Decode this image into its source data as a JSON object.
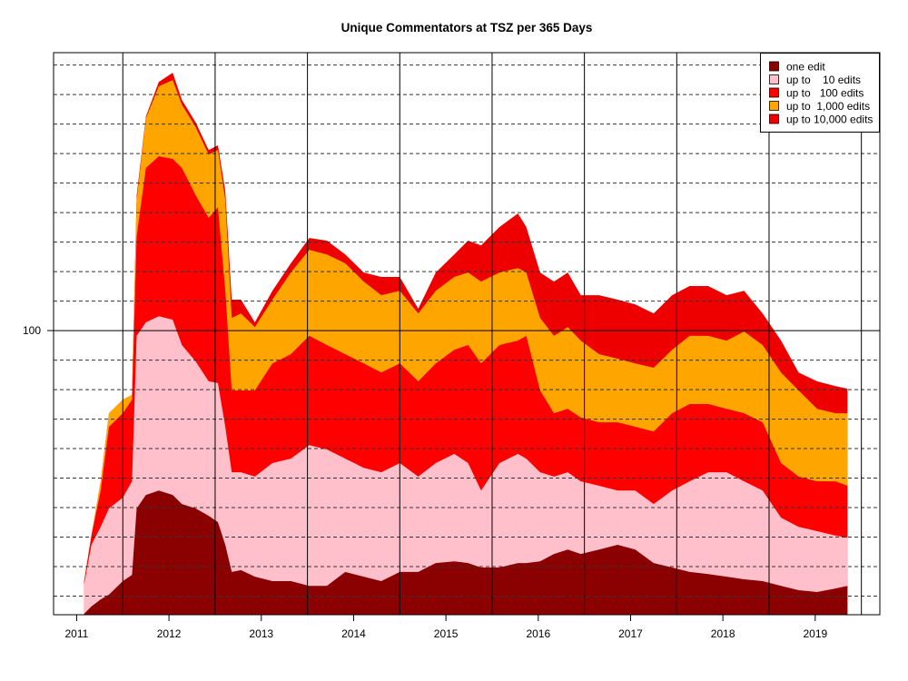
{
  "chart_data": {
    "type": "area",
    "stacked": true,
    "values_are_cumulative": true,
    "title": "Unique Commentators at TSZ per 365 Days",
    "xlabel": "",
    "ylabel": "",
    "xlim": [
      2010.75,
      2019.7
    ],
    "ylim": [
      3.7,
      194.2
    ],
    "x_ticks": [
      2011,
      2012,
      2013,
      2014,
      2015,
      2016,
      2017,
      2018,
      2019
    ],
    "x_tick_labels": [
      "2011",
      "2012",
      "2013",
      "2014",
      "2015",
      "2016",
      "2017",
      "2018",
      "2019"
    ],
    "y_ticks": [
      100
    ],
    "y_tick_labels": [
      "100"
    ],
    "grid": {
      "horizontal_dashed_every": 10,
      "horizontal_solid_at": 100,
      "vertical_solid_at": [
        2011.5,
        2012.5,
        2013.5,
        2014.5,
        2015.5,
        2016.5,
        2017.5,
        2018.5,
        2019.5
      ]
    },
    "legend_position": "top-right",
    "x": [
      2011.08,
      2011.16,
      2011.26,
      2011.35,
      2011.5,
      2011.6,
      2011.65,
      2011.75,
      2011.89,
      2012.04,
      2012.14,
      2012.29,
      2012.43,
      2012.53,
      2012.61,
      2012.68,
      2012.78,
      2012.93,
      2013.12,
      2013.32,
      2013.52,
      2013.71,
      2013.91,
      2014.11,
      2014.3,
      2014.5,
      2014.7,
      2014.89,
      2015.09,
      2015.24,
      2015.38,
      2015.58,
      2015.78,
      2015.87,
      2016.02,
      2016.17,
      2016.32,
      2016.46,
      2016.66,
      2016.86,
      2017.05,
      2017.25,
      2017.45,
      2017.64,
      2017.84,
      2018.04,
      2018.23,
      2018.43,
      2018.63,
      2018.82,
      2019.02,
      2019.22,
      2019.35
    ],
    "series": [
      {
        "name": "one edit",
        "label": "one edit",
        "color": "#8b0000",
        "values": [
          4,
          6.5,
          8.9,
          10.5,
          15.1,
          17.2,
          39.7,
          44.3,
          45.8,
          44.3,
          41.2,
          39.7,
          37.2,
          35.1,
          27.4,
          18.2,
          18.8,
          16.6,
          15.1,
          15.1,
          13.5,
          13.5,
          18.2,
          16.6,
          15.1,
          18.2,
          18.2,
          21.2,
          21.8,
          21.2,
          19.7,
          19.7,
          21.2,
          21.2,
          21.8,
          24.3,
          25.8,
          24.3,
          25.8,
          27.4,
          25.8,
          21.2,
          19.7,
          18.2,
          17.5,
          16.6,
          15.7,
          15.1,
          13.5,
          12,
          11.4,
          12.6,
          13.5
        ]
      },
      {
        "name": "up to 10 edits",
        "label": "up to    10 edits",
        "color": "#ffc0cb",
        "values": [
          14,
          27.4,
          33.5,
          39.7,
          43.4,
          48.9,
          98.2,
          102.8,
          104.9,
          103.7,
          95.1,
          89.5,
          82.8,
          82.2,
          67.4,
          52,
          52,
          50.5,
          55.1,
          56.6,
          61.2,
          59.7,
          56.6,
          53.5,
          52,
          55.1,
          50.5,
          55.1,
          58.2,
          55.1,
          45.8,
          55.1,
          58.2,
          56.6,
          52,
          50.5,
          52,
          48.9,
          47.4,
          45.8,
          45.8,
          41.2,
          45.8,
          48.9,
          52,
          52,
          48.9,
          45.8,
          36.6,
          33.5,
          32,
          30.5,
          29.8
        ]
      },
      {
        "name": "up to 100 edits",
        "label": "up to   100 edits",
        "color": "#ff0000",
        "values": [
          15,
          30.5,
          45.8,
          67.4,
          72,
          76.6,
          132,
          155.1,
          159.1,
          158.2,
          155.1,
          145.8,
          138.2,
          141.8,
          113.5,
          79.7,
          79.7,
          79.7,
          88.9,
          92,
          98.2,
          95.1,
          92,
          88.9,
          85.8,
          88.9,
          82.8,
          88.9,
          93.5,
          95.1,
          88.9,
          95.1,
          96.6,
          98.2,
          79.7,
          72,
          73.5,
          70.5,
          68.9,
          68.9,
          67.4,
          65.8,
          72,
          75.1,
          75.1,
          73.5,
          72,
          68.9,
          55.1,
          50.5,
          48.9,
          48.9,
          47.4
        ]
      },
      {
        "name": "up to 1,000 edits",
        "label": "up to  1,000 edits",
        "color": "#ffa500",
        "values": [
          15,
          30.5,
          48.9,
          72,
          76.6,
          78.2,
          144.3,
          172,
          182.8,
          184.9,
          176.6,
          168.9,
          159.7,
          161.2,
          144.3,
          104.3,
          105.8,
          101.2,
          110.5,
          119.7,
          127.4,
          125.8,
          122.8,
          116.6,
          112,
          113.5,
          105.8,
          113.5,
          118.2,
          119.7,
          116.6,
          119.7,
          121.2,
          119.7,
          104.3,
          98.2,
          101.2,
          96.6,
          92,
          90.5,
          88.9,
          87.4,
          93.5,
          98.2,
          98.2,
          96.6,
          99.7,
          95.1,
          85.8,
          79.7,
          73.5,
          72,
          72
        ]
      },
      {
        "name": "up to 10,000 edits",
        "label": "up to 10,000 edits",
        "color": "#ee0000",
        "values": [
          15,
          30.5,
          48.9,
          72,
          76.6,
          78.2,
          145.8,
          172.6,
          184.3,
          187.4,
          178.2,
          170.5,
          161.2,
          162.8,
          147.4,
          110.5,
          110.5,
          102.8,
          113.5,
          122.8,
          131.4,
          130.5,
          125.8,
          119.7,
          118.2,
          118.2,
          107.4,
          119.7,
          125.8,
          130.5,
          128.9,
          135.1,
          139.7,
          135.1,
          119.7,
          116.6,
          119.7,
          112,
          112,
          110.5,
          108.9,
          105.8,
          112,
          115.1,
          115.1,
          112,
          113.5,
          105.8,
          96.6,
          85.8,
          82.8,
          81.2,
          80.3
        ]
      }
    ]
  }
}
